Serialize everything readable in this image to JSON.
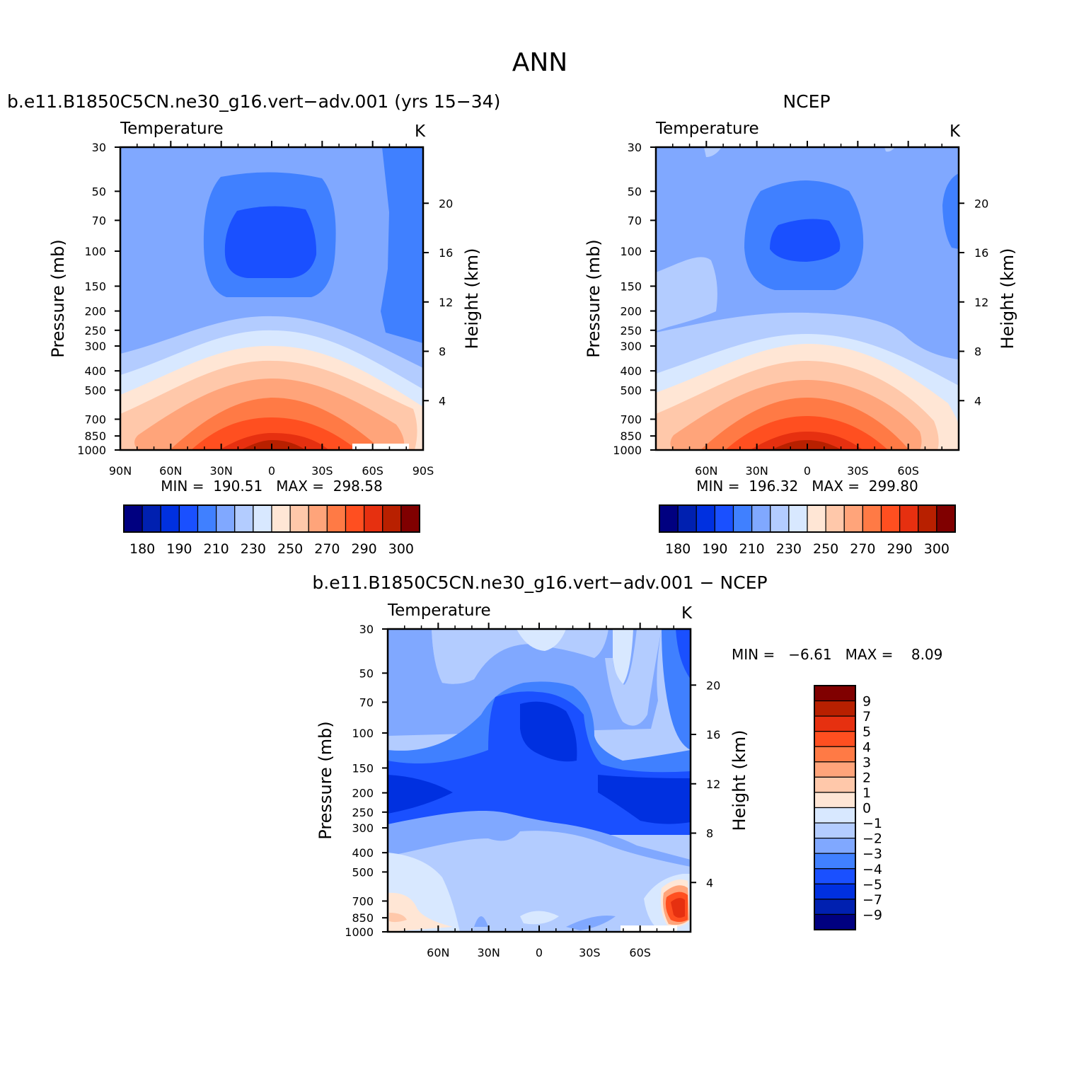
{
  "figure": {
    "title": "ANN",
    "bottom_min_max": "MIN =   −6.61   MAX =    8.09"
  },
  "chart_data": [
    {
      "type": "heatmap",
      "title": "b.e11.B1850C5CN.ne30_g16.vert−adv.001 (yrs 15−34)",
      "variable": "Temperature",
      "units": "K",
      "ylabel": "Pressure (mb)",
      "y2label": "Height (km)",
      "x_ticks": [
        "90N",
        "60N",
        "30N",
        "0",
        "30S",
        "60S",
        "90S"
      ],
      "y_ticks": [
        "30",
        "50",
        "70",
        "100",
        "150",
        "200",
        "250",
        "300",
        "400",
        "500",
        "700",
        "850",
        "1000"
      ],
      "y2_ticks": [
        "20",
        "16",
        "12",
        "8",
        "4"
      ],
      "min_max": "MIN =  190.51   MAX =  298.58",
      "stats": {
        "min": 190.51,
        "max": 298.58
      },
      "colorbar_ticks": [
        "180",
        "190",
        "210",
        "230",
        "250",
        "270",
        "290",
        "300"
      ],
      "colors": [
        "#000080",
        "#0020b0",
        "#0030e0",
        "#1a50ff",
        "#4080ff",
        "#80a8ff",
        "#b3ccff",
        "#d8e8ff",
        "#ffe6d5",
        "#ffc8aa",
        "#ffa47a",
        "#ff7a45",
        "#ff4f20",
        "#e63010",
        "#b82000",
        "#800000"
      ]
    },
    {
      "type": "heatmap",
      "title": "NCEP",
      "variable": "Temperature",
      "units": "K",
      "ylabel": "Pressure (mb)",
      "y2label": "Height (km)",
      "x_ticks": [
        "60N",
        "30N",
        "0",
        "30S",
        "60S"
      ],
      "y_ticks": [
        "30",
        "50",
        "70",
        "100",
        "150",
        "200",
        "250",
        "300",
        "400",
        "500",
        "700",
        "850",
        "1000"
      ],
      "y2_ticks": [
        "20",
        "16",
        "12",
        "8",
        "4"
      ],
      "min_max": "MIN =  196.32   MAX =  299.80",
      "stats": {
        "min": 196.32,
        "max": 299.8
      },
      "colorbar_ticks": [
        "180",
        "190",
        "210",
        "230",
        "250",
        "270",
        "290",
        "300"
      ],
      "colors": [
        "#000080",
        "#0020b0",
        "#0030e0",
        "#1a50ff",
        "#4080ff",
        "#80a8ff",
        "#b3ccff",
        "#d8e8ff",
        "#ffe6d5",
        "#ffc8aa",
        "#ffa47a",
        "#ff7a45",
        "#ff4f20",
        "#e63010",
        "#b82000",
        "#800000"
      ]
    },
    {
      "type": "heatmap",
      "title": "b.e11.B1850C5CN.ne30_g16.vert−adv.001 − NCEP",
      "variable": "Temperature",
      "units": "K",
      "ylabel": "Pressure (mb)",
      "y2label": "Height (km)",
      "x_ticks": [
        "60N",
        "30N",
        "0",
        "30S",
        "60S"
      ],
      "y_ticks": [
        "30",
        "50",
        "70",
        "100",
        "150",
        "200",
        "250",
        "300",
        "400",
        "500",
        "700",
        "850",
        "1000"
      ],
      "y2_ticks": [
        "20",
        "16",
        "12",
        "8",
        "4"
      ],
      "stats": {
        "min": -6.61,
        "max": 8.09
      },
      "colorbar_ticks": [
        "9",
        "7",
        "5",
        "4",
        "3",
        "2",
        "1",
        "0",
        "−1",
        "−2",
        "−3",
        "−4",
        "−5",
        "−7",
        "−9"
      ],
      "colors": [
        "#800000",
        "#b82000",
        "#e63010",
        "#ff4f20",
        "#ff7a45",
        "#ffa47a",
        "#ffc8aa",
        "#ffe6d5",
        "#d8e8ff",
        "#b3ccff",
        "#80a8ff",
        "#4080ff",
        "#1a50ff",
        "#0030e0",
        "#0020b0",
        "#000080"
      ]
    }
  ]
}
